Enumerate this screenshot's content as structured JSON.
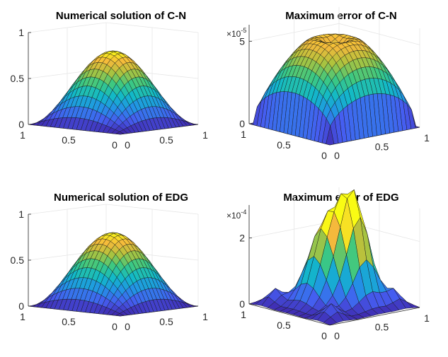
{
  "figure": {
    "layout": "2x2 grid of 3-D surface plots"
  },
  "chart_data": [
    {
      "type": "surface3d",
      "title": "Numerical solution of C-N",
      "surface": "u(x,y) = sin(pi x) sin(pi y), peak ~0.8 at center",
      "peak": 0.8,
      "xlim": [
        0,
        1
      ],
      "ylim": [
        0,
        1
      ],
      "zlim": [
        0,
        1
      ],
      "x_ticks": [
        "0",
        "0.5",
        "1"
      ],
      "y_ticks": [
        "0",
        "0.5",
        "1"
      ],
      "z_ticks": [
        "0",
        "0.5",
        "1"
      ],
      "z_multiplier": null,
      "colormap": "parula",
      "grid_resolution": 21
    },
    {
      "type": "surface3d",
      "title": "Maximum error of C-N",
      "surface": "flat-topped plateau ~5.8e-5 dipping at corners and edges",
      "peak": 5.8,
      "xlim": [
        0,
        1
      ],
      "ylim": [
        0,
        1
      ],
      "zlim": [
        0,
        6
      ],
      "x_ticks": [
        "0",
        "0.5",
        "1"
      ],
      "y_ticks": [
        "0",
        "0.5",
        "1"
      ],
      "z_ticks": [
        "0",
        "5"
      ],
      "z_multiplier": {
        "base": "×10",
        "exponent": "-5"
      },
      "colormap": "parula",
      "grid_resolution": 21
    },
    {
      "type": "surface3d",
      "title": "Numerical solution of EDG",
      "surface": "u(x,y) = sin(pi x) sin(pi y), peak ~0.8 at center",
      "peak": 0.8,
      "xlim": [
        0,
        1
      ],
      "ylim": [
        0,
        1
      ],
      "zlim": [
        0,
        1
      ],
      "x_ticks": [
        "0",
        "0.5",
        "1"
      ],
      "y_ticks": [
        "0",
        "0.5",
        "1"
      ],
      "z_ticks": [
        "0",
        "0.5",
        "1"
      ],
      "z_multiplier": null,
      "colormap": "parula",
      "grid_resolution": 21
    },
    {
      "type": "surface3d",
      "title": "Maximum error of EDG",
      "surface": "central peaks ~2.6e-4 with small bumps ~0.5e-4 near corners",
      "peak": 2.6,
      "xlim": [
        0,
        1
      ],
      "ylim": [
        0,
        1
      ],
      "zlim": [
        0,
        3
      ],
      "x_ticks": [
        "0",
        "0.5",
        "1"
      ],
      "y_ticks": [
        "0",
        "0.5",
        "1"
      ],
      "z_ticks": [
        "0",
        "2"
      ],
      "z_multiplier": {
        "base": "×10",
        "exponent": "-4"
      },
      "colormap": "parula",
      "grid_resolution": 13
    }
  ]
}
